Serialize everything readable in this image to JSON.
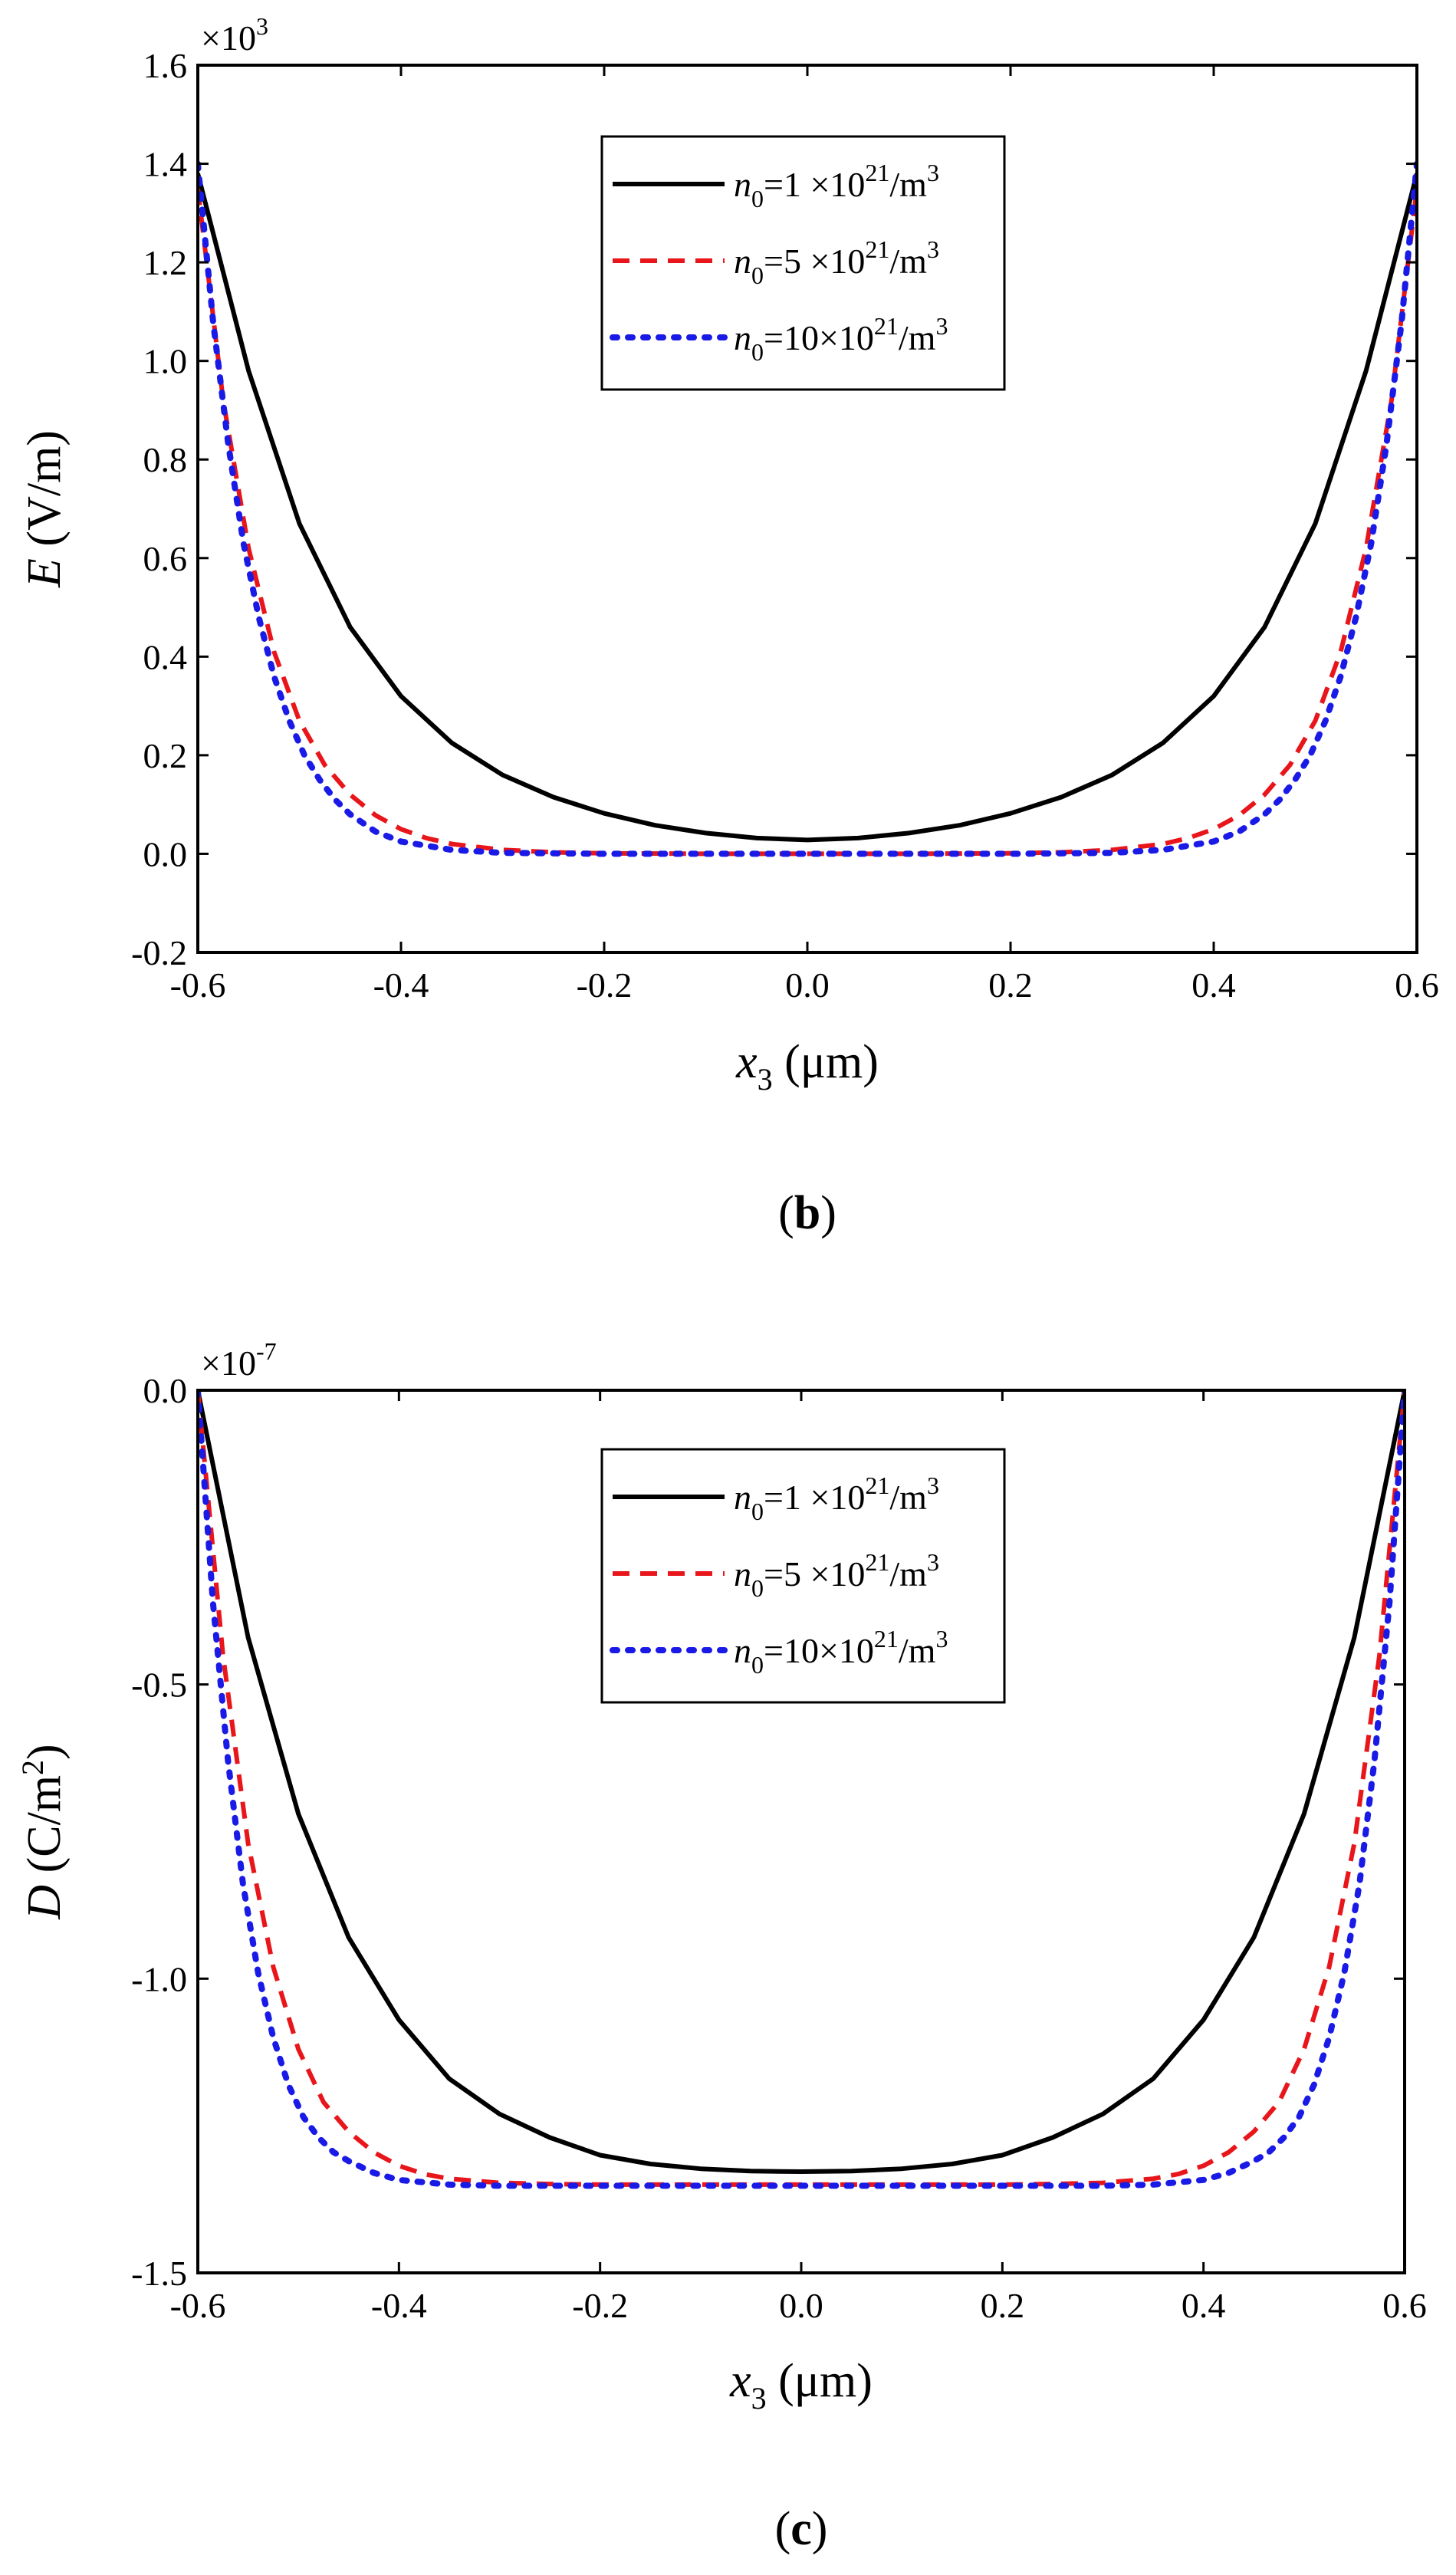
{
  "chart_data": [
    {
      "type": "line",
      "panel_label": "b",
      "xlabel": "x3 (μm)",
      "xlabel_var": "x",
      "xlabel_sub": "3",
      "xlabel_unit": " (μm)",
      "ylabel": "E (V/m)",
      "ylabel_var": "E",
      "ylabel_unit": " (V/m)",
      "y_multiplier_base": "×10",
      "y_multiplier_exp": "3",
      "xlim": [
        -0.6,
        0.6
      ],
      "ylim": [
        -0.2,
        1.6
      ],
      "x_ticks": [
        -0.6,
        -0.4,
        -0.2,
        0.0,
        0.2,
        0.4,
        0.6
      ],
      "x_tick_labels": [
        "-0.6",
        "-0.4",
        "-0.2",
        "0.0",
        "0.2",
        "0.4",
        "0.6"
      ],
      "y_ticks": [
        -0.2,
        0.0,
        0.2,
        0.4,
        0.6,
        0.8,
        1.0,
        1.2,
        1.4,
        1.6
      ],
      "y_tick_labels": [
        "-0.2",
        "0.0",
        "0.2",
        "0.4",
        "0.6",
        "0.8",
        "1.0",
        "1.2",
        "1.4",
        "1.6"
      ],
      "legend_position": "top-center",
      "series": [
        {
          "name": "n0=1 ×10^21/m^3",
          "legend_n": "n",
          "legend_sub": "0",
          "legend_eq": "=1  ×10",
          "legend_exp": "21",
          "legend_unit": "/m",
          "legend_unit_exp": "3",
          "color": "#000000",
          "dash": "solid",
          "x": [
            -0.6,
            -0.55,
            -0.5,
            -0.45,
            -0.4,
            -0.35,
            -0.3,
            -0.25,
            -0.2,
            -0.15,
            -0.1,
            -0.05,
            0.0,
            0.05,
            0.1,
            0.15,
            0.2,
            0.25,
            0.3,
            0.35,
            0.4,
            0.45,
            0.5,
            0.55,
            0.6
          ],
          "y": [
            1.38,
            0.98,
            0.67,
            0.46,
            0.32,
            0.225,
            0.16,
            0.115,
            0.082,
            0.058,
            0.042,
            0.032,
            0.028,
            0.032,
            0.042,
            0.058,
            0.082,
            0.115,
            0.16,
            0.225,
            0.32,
            0.46,
            0.67,
            0.98,
            1.38
          ]
        },
        {
          "name": "n0=5 ×10^21/m^3",
          "legend_n": "n",
          "legend_sub": "0",
          "legend_eq": "=5  ×10",
          "legend_exp": "21",
          "legend_unit": "/m",
          "legend_unit_exp": "3",
          "color": "#e8161b",
          "dash": "dashed",
          "x": [
            -0.6,
            -0.575,
            -0.55,
            -0.525,
            -0.5,
            -0.475,
            -0.45,
            -0.425,
            -0.4,
            -0.375,
            -0.35,
            -0.3,
            -0.25,
            -0.2,
            -0.1,
            0.0,
            0.1,
            0.2,
            0.25,
            0.3,
            0.35,
            0.375,
            0.4,
            0.425,
            0.45,
            0.475,
            0.5,
            0.525,
            0.55,
            0.575,
            0.6
          ],
          "y": [
            1.35,
            0.92,
            0.62,
            0.41,
            0.27,
            0.18,
            0.12,
            0.078,
            0.05,
            0.032,
            0.02,
            0.008,
            0.003,
            0.001,
            0.0,
            0.0,
            0.0,
            0.001,
            0.003,
            0.008,
            0.02,
            0.032,
            0.05,
            0.078,
            0.12,
            0.18,
            0.27,
            0.41,
            0.62,
            0.92,
            1.35
          ]
        },
        {
          "name": "n0=10×10^21/m^3",
          "legend_n": "n",
          "legend_sub": "0",
          "legend_eq": "=10×10",
          "legend_exp": "21",
          "legend_unit": "/m",
          "legend_unit_exp": "3",
          "color": "#1a1ae6",
          "dash": "dotted",
          "x": [
            -0.6,
            -0.585,
            -0.57,
            -0.555,
            -0.54,
            -0.525,
            -0.51,
            -0.495,
            -0.48,
            -0.465,
            -0.45,
            -0.425,
            -0.4,
            -0.35,
            -0.3,
            -0.2,
            0.0,
            0.2,
            0.3,
            0.35,
            0.4,
            0.425,
            0.45,
            0.465,
            0.48,
            0.495,
            0.51,
            0.525,
            0.54,
            0.555,
            0.57,
            0.585,
            0.6
          ],
          "y": [
            1.4,
            1.08,
            0.83,
            0.63,
            0.48,
            0.36,
            0.27,
            0.2,
            0.15,
            0.11,
            0.08,
            0.045,
            0.025,
            0.008,
            0.002,
            0.0,
            0.0,
            0.0,
            0.002,
            0.008,
            0.025,
            0.045,
            0.08,
            0.11,
            0.15,
            0.2,
            0.27,
            0.36,
            0.48,
            0.63,
            0.83,
            1.08,
            1.4
          ]
        }
      ]
    },
    {
      "type": "line",
      "panel_label": "c",
      "xlabel": "x3 (μm)",
      "xlabel_var": "x",
      "xlabel_sub": "3",
      "xlabel_unit": " (μm)",
      "ylabel": "D (C/m2)",
      "ylabel_var": "D",
      "ylabel_unit": " (C/m",
      "ylabel_unit_exp": "2",
      "ylabel_unit_close": ")",
      "y_multiplier_base": "×10",
      "y_multiplier_exp": "-7",
      "xlim": [
        -0.6,
        0.6
      ],
      "ylim": [
        -1.5,
        0.0
      ],
      "x_ticks": [
        -0.6,
        -0.4,
        -0.2,
        0.0,
        0.2,
        0.4,
        0.6
      ],
      "x_tick_labels": [
        "-0.6",
        "-0.4",
        "-0.2",
        "0.0",
        "0.2",
        "0.4",
        "0.6"
      ],
      "y_ticks": [
        -1.5,
        -1.0,
        -0.5,
        0.0
      ],
      "y_tick_labels": [
        "-1.5",
        "-1.0",
        "-0.5",
        "0.0"
      ],
      "legend_position": "top-center",
      "series": [
        {
          "name": "n0=1 ×10^21/m^3",
          "legend_n": "n",
          "legend_sub": "0",
          "legend_eq": "=1  ×10",
          "legend_exp": "21",
          "legend_unit": "/m",
          "legend_unit_exp": "3",
          "color": "#000000",
          "dash": "solid",
          "x": [
            -0.6,
            -0.55,
            -0.5,
            -0.45,
            -0.4,
            -0.35,
            -0.3,
            -0.25,
            -0.2,
            -0.15,
            -0.1,
            -0.05,
            0.0,
            0.05,
            0.1,
            0.15,
            0.2,
            0.25,
            0.3,
            0.35,
            0.4,
            0.45,
            0.5,
            0.55,
            0.6
          ],
          "y": [
            0.0,
            -0.42,
            -0.72,
            -0.93,
            -1.07,
            -1.17,
            -1.23,
            -1.27,
            -1.3,
            -1.315,
            -1.323,
            -1.327,
            -1.328,
            -1.327,
            -1.323,
            -1.315,
            -1.3,
            -1.27,
            -1.23,
            -1.17,
            -1.07,
            -0.93,
            -0.72,
            -0.42,
            0.0
          ]
        },
        {
          "name": "n0=5 ×10^21/m^3",
          "legend_n": "n",
          "legend_sub": "0",
          "legend_eq": "=5  ×10",
          "legend_exp": "21",
          "legend_unit": "/m",
          "legend_unit_exp": "3",
          "color": "#e8161b",
          "dash": "dashed",
          "x": [
            -0.6,
            -0.575,
            -0.55,
            -0.525,
            -0.5,
            -0.475,
            -0.45,
            -0.425,
            -0.4,
            -0.375,
            -0.35,
            -0.3,
            -0.25,
            -0.2,
            -0.1,
            0.0,
            0.1,
            0.2,
            0.25,
            0.3,
            0.35,
            0.375,
            0.4,
            0.425,
            0.45,
            0.475,
            0.5,
            0.525,
            0.55,
            0.575,
            0.6
          ],
          "y": [
            0.0,
            -0.45,
            -0.77,
            -0.98,
            -1.12,
            -1.21,
            -1.26,
            -1.295,
            -1.318,
            -1.332,
            -1.34,
            -1.347,
            -1.349,
            -1.35,
            -1.35,
            -1.35,
            -1.35,
            -1.35,
            -1.349,
            -1.347,
            -1.34,
            -1.332,
            -1.318,
            -1.295,
            -1.26,
            -1.21,
            -1.12,
            -0.98,
            -0.77,
            -0.45,
            0.0
          ]
        },
        {
          "name": "n0=10×10^21/m^3",
          "legend_n": "n",
          "legend_sub": "0",
          "legend_eq": "=10×10",
          "legend_exp": "21",
          "legend_unit": "/m",
          "legend_unit_exp": "3",
          "color": "#1a1ae6",
          "dash": "dotted",
          "x": [
            -0.6,
            -0.585,
            -0.57,
            -0.555,
            -0.54,
            -0.525,
            -0.51,
            -0.495,
            -0.48,
            -0.465,
            -0.45,
            -0.425,
            -0.4,
            -0.35,
            -0.3,
            -0.2,
            0.0,
            0.2,
            0.3,
            0.35,
            0.4,
            0.425,
            0.45,
            0.465,
            0.48,
            0.495,
            0.51,
            0.525,
            0.54,
            0.555,
            0.57,
            0.585,
            0.6
          ],
          "y": [
            0.0,
            -0.36,
            -0.63,
            -0.84,
            -0.99,
            -1.1,
            -1.18,
            -1.235,
            -1.27,
            -1.295,
            -1.31,
            -1.33,
            -1.342,
            -1.35,
            -1.352,
            -1.352,
            -1.352,
            -1.352,
            -1.352,
            -1.35,
            -1.342,
            -1.33,
            -1.31,
            -1.295,
            -1.27,
            -1.235,
            -1.18,
            -1.1,
            -0.99,
            -0.84,
            -0.63,
            -0.36,
            0.0
          ]
        }
      ]
    }
  ]
}
